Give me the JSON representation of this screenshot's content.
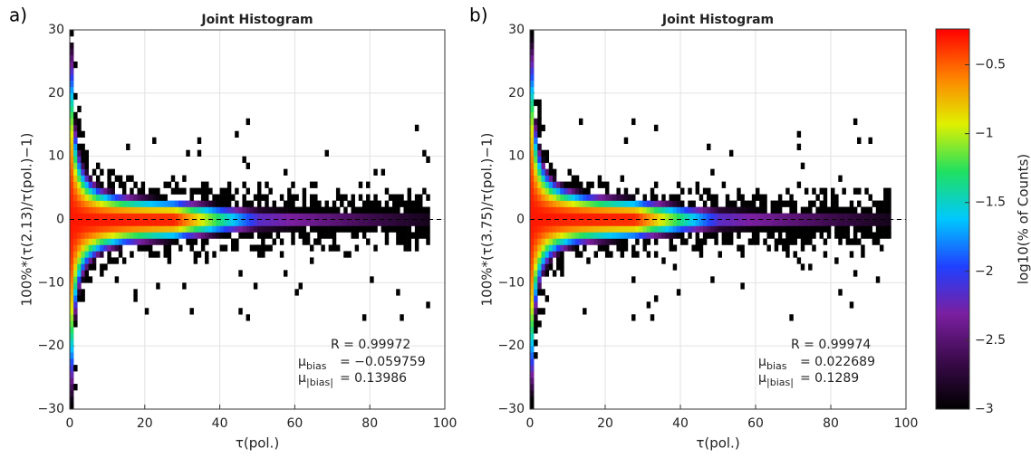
{
  "chart_data": [
    {
      "type": "heatmap",
      "panel_label": "a)",
      "title": "Joint Histogram",
      "xlabel": "τ(pol.)",
      "ylabel": "100%*(τ(2.13)/τ(pol.)−1)",
      "xlim": [
        0,
        100
      ],
      "ylim": [
        -30,
        30
      ],
      "xticks": [
        0,
        20,
        40,
        60,
        80,
        100
      ],
      "yticks": [
        {
          "value": -30,
          "label": "−30"
        },
        {
          "value": -20,
          "label": "−20"
        },
        {
          "value": -10,
          "label": "−10"
        },
        0,
        10,
        20,
        30
      ],
      "grid": true,
      "stats": [
        {
          "text": "R = 0.99972"
        },
        {
          "symbol": "μ",
          "subscript": "bias",
          "text": "= −0.059759"
        },
        {
          "symbol": "μ",
          "subscript": "|bias|",
          "text": "= 0.13986"
        }
      ]
    },
    {
      "type": "heatmap",
      "panel_label": "b)",
      "title": "Joint Histogram",
      "xlabel": "τ(pol.)",
      "ylabel": "100%*(τ(3.75)/τ(pol.)−1)",
      "xlim": [
        0,
        100
      ],
      "ylim": [
        -30,
        30
      ],
      "xticks": [
        0,
        20,
        40,
        60,
        80,
        100
      ],
      "yticks": [
        {
          "value": -30,
          "label": "−30"
        },
        {
          "value": -20,
          "label": "−20"
        },
        {
          "value": -10,
          "label": "−10"
        },
        0,
        10,
        20,
        30
      ],
      "grid": true,
      "stats": [
        {
          "text": "R = 0.99974"
        },
        {
          "symbol": "μ",
          "subscript": "bias",
          "text": "= 0.022689"
        },
        {
          "symbol": "μ",
          "subscript": "|bias|",
          "text": "= 0.1289"
        }
      ]
    }
  ],
  "colorbar": {
    "label": "log10(% of Counts)",
    "clim": [
      -3,
      -0.24
    ],
    "ticks": [
      {
        "value": -3,
        "label": "−3"
      },
      {
        "value": -2.5,
        "label": "−2.5"
      },
      {
        "value": -2,
        "label": "−2"
      },
      {
        "value": -1.5,
        "label": "−1.5"
      },
      {
        "value": -1,
        "label": "−1"
      },
      {
        "value": -0.5,
        "label": "−0.5"
      }
    ],
    "colormap": [
      "#000000",
      "#3a0a4a",
      "#7a1fa0",
      "#2040ff",
      "#00c8ff",
      "#20e060",
      "#e0f000",
      "#ff8000",
      "#ff0000"
    ]
  }
}
